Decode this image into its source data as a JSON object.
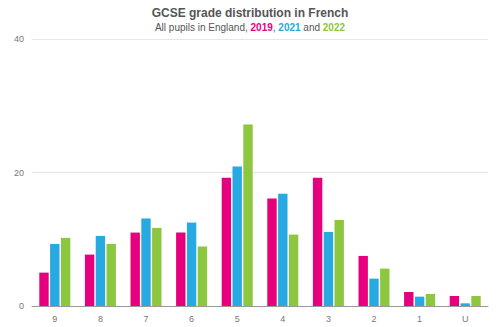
{
  "chart_data": {
    "type": "bar",
    "title": "GCSE grade distribution in French",
    "subtitle": "All pupils in England, 2019, 2021 and 2022",
    "categories": [
      "9",
      "8",
      "7",
      "6",
      "5",
      "4",
      "3",
      "2",
      "1",
      "U"
    ],
    "series": [
      {
        "name": "2019",
        "color": "#e6007e",
        "values": [
          5.0,
          7.7,
          11.0,
          11.0,
          19.2,
          16.1,
          19.2,
          7.5,
          2.1,
          1.5
        ]
      },
      {
        "name": "2021",
        "color": "#27aae1",
        "values": [
          9.3,
          10.5,
          13.1,
          12.5,
          20.9,
          16.8,
          11.1,
          4.1,
          1.4,
          0.4
        ]
      },
      {
        "name": "2022",
        "color": "#8dc63f",
        "values": [
          10.2,
          9.3,
          11.7,
          8.9,
          27.2,
          10.7,
          12.9,
          5.6,
          1.8,
          1.5
        ]
      }
    ],
    "ylim": [
      0,
      40
    ],
    "yticks": [
      0,
      20,
      40
    ],
    "grid": true
  }
}
